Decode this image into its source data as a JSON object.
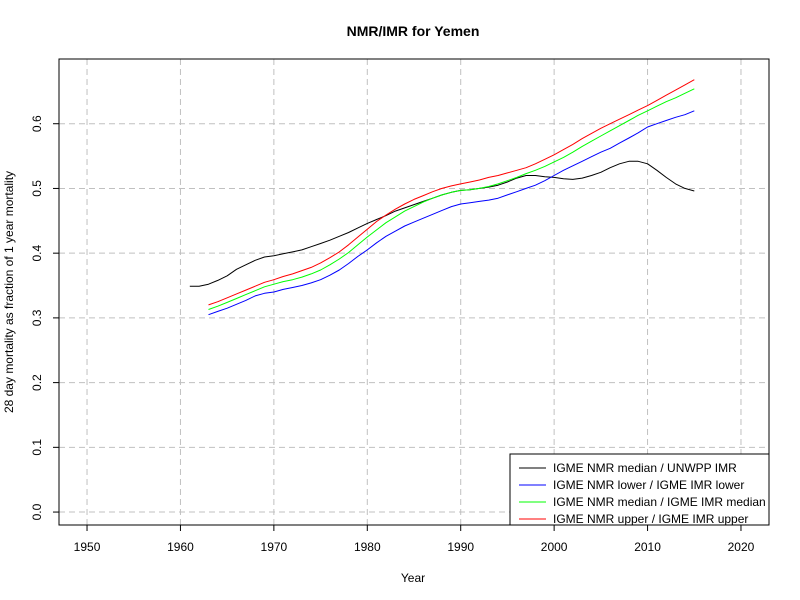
{
  "chart_data": {
    "type": "line",
    "title": "NMR/IMR for Yemen",
    "xlabel": "Year",
    "ylabel": "28 day mortality as fraction of 1 year mortality",
    "xlim": [
      1947,
      2023
    ],
    "ylim": [
      -0.02,
      0.7
    ],
    "x_ticks": [
      1950,
      1960,
      1970,
      1980,
      1990,
      2000,
      2010,
      2020
    ],
    "y_ticks": [
      0.0,
      0.1,
      0.2,
      0.3,
      0.4,
      0.5,
      0.6
    ],
    "grid": true,
    "legend_position": "bottom-right",
    "series": [
      {
        "name": "IGME NMR median / UNWPP IMR",
        "color": "#000000",
        "x": [
          1961,
          1962,
          1963,
          1964,
          1965,
          1966,
          1967,
          1968,
          1969,
          1970,
          1971,
          1972,
          1973,
          1974,
          1975,
          1976,
          1977,
          1978,
          1979,
          1980,
          1981,
          1982,
          1983,
          1984,
          1985,
          1986,
          1987,
          1988,
          1989,
          1990,
          1991,
          1992,
          1993,
          1994,
          1995,
          1996,
          1997,
          1998,
          1999,
          2000,
          2001,
          2002,
          2003,
          2004,
          2005,
          2006,
          2007,
          2008,
          2009,
          2010,
          2011,
          2012,
          2013,
          2014,
          2015
        ],
        "y": [
          0.349,
          0.349,
          0.352,
          0.358,
          0.365,
          0.375,
          0.382,
          0.389,
          0.394,
          0.396,
          0.399,
          0.402,
          0.405,
          0.41,
          0.415,
          0.42,
          0.426,
          0.432,
          0.439,
          0.446,
          0.452,
          0.458,
          0.465,
          0.47,
          0.475,
          0.48,
          0.485,
          0.49,
          0.494,
          0.497,
          0.498,
          0.5,
          0.502,
          0.505,
          0.51,
          0.516,
          0.52,
          0.52,
          0.518,
          0.517,
          0.515,
          0.514,
          0.516,
          0.52,
          0.525,
          0.532,
          0.538,
          0.542,
          0.542,
          0.538,
          0.528,
          0.517,
          0.507,
          0.5,
          0.496
        ]
      },
      {
        "name": "IGME NMR lower / IGME IMR lower",
        "color": "#0000ff",
        "x": [
          1963,
          1964,
          1965,
          1966,
          1967,
          1968,
          1969,
          1970,
          1971,
          1972,
          1973,
          1974,
          1975,
          1976,
          1977,
          1978,
          1979,
          1980,
          1981,
          1982,
          1983,
          1984,
          1985,
          1986,
          1987,
          1988,
          1989,
          1990,
          1991,
          1992,
          1993,
          1994,
          1995,
          1996,
          1997,
          1998,
          1999,
          2000,
          2001,
          2002,
          2003,
          2004,
          2005,
          2006,
          2007,
          2008,
          2009,
          2010,
          2011,
          2012,
          2013,
          2014,
          2015
        ],
        "y": [
          0.305,
          0.31,
          0.315,
          0.321,
          0.327,
          0.334,
          0.338,
          0.34,
          0.344,
          0.347,
          0.35,
          0.354,
          0.359,
          0.366,
          0.374,
          0.384,
          0.395,
          0.405,
          0.416,
          0.426,
          0.434,
          0.442,
          0.448,
          0.454,
          0.46,
          0.466,
          0.472,
          0.476,
          0.478,
          0.48,
          0.482,
          0.485,
          0.49,
          0.495,
          0.5,
          0.505,
          0.512,
          0.52,
          0.528,
          0.535,
          0.542,
          0.549,
          0.556,
          0.562,
          0.57,
          0.578,
          0.586,
          0.595,
          0.6,
          0.605,
          0.61,
          0.614,
          0.62
        ]
      },
      {
        "name": "IGME NMR median / IGME IMR median",
        "color": "#00ff00",
        "x": [
          1963,
          1964,
          1965,
          1966,
          1967,
          1968,
          1969,
          1970,
          1971,
          1972,
          1973,
          1974,
          1975,
          1976,
          1977,
          1978,
          1979,
          1980,
          1981,
          1982,
          1983,
          1984,
          1985,
          1986,
          1987,
          1988,
          1989,
          1990,
          1991,
          1992,
          1993,
          1994,
          1995,
          1996,
          1997,
          1998,
          1999,
          2000,
          2001,
          2002,
          2003,
          2004,
          2005,
          2006,
          2007,
          2008,
          2009,
          2010,
          2011,
          2012,
          2013,
          2014,
          2015
        ],
        "y": [
          0.313,
          0.318,
          0.324,
          0.33,
          0.336,
          0.342,
          0.348,
          0.352,
          0.356,
          0.359,
          0.363,
          0.368,
          0.374,
          0.382,
          0.391,
          0.401,
          0.413,
          0.425,
          0.436,
          0.447,
          0.456,
          0.465,
          0.472,
          0.479,
          0.485,
          0.49,
          0.494,
          0.497,
          0.498,
          0.5,
          0.503,
          0.507,
          0.512,
          0.517,
          0.523,
          0.528,
          0.534,
          0.541,
          0.548,
          0.556,
          0.565,
          0.573,
          0.581,
          0.589,
          0.597,
          0.605,
          0.613,
          0.62,
          0.627,
          0.634,
          0.64,
          0.647,
          0.654
        ]
      },
      {
        "name": "IGME NMR upper / IGME IMR upper",
        "color": "#ff0000",
        "x": [
          1963,
          1964,
          1965,
          1966,
          1967,
          1968,
          1969,
          1970,
          1971,
          1972,
          1973,
          1974,
          1975,
          1976,
          1977,
          1978,
          1979,
          1980,
          1981,
          1982,
          1983,
          1984,
          1985,
          1986,
          1987,
          1988,
          1989,
          1990,
          1991,
          1992,
          1993,
          1994,
          1995,
          1996,
          1997,
          1998,
          1999,
          2000,
          2001,
          2002,
          2003,
          2004,
          2005,
          2006,
          2007,
          2008,
          2009,
          2010,
          2011,
          2012,
          2013,
          2014,
          2015
        ],
        "y": [
          0.32,
          0.325,
          0.331,
          0.337,
          0.343,
          0.349,
          0.355,
          0.359,
          0.364,
          0.368,
          0.373,
          0.378,
          0.385,
          0.393,
          0.402,
          0.413,
          0.425,
          0.437,
          0.449,
          0.459,
          0.468,
          0.476,
          0.483,
          0.489,
          0.495,
          0.5,
          0.504,
          0.507,
          0.51,
          0.513,
          0.517,
          0.52,
          0.524,
          0.528,
          0.532,
          0.538,
          0.545,
          0.552,
          0.56,
          0.568,
          0.577,
          0.585,
          0.593,
          0.6,
          0.607,
          0.614,
          0.621,
          0.628,
          0.636,
          0.644,
          0.652,
          0.66,
          0.668
        ]
      }
    ]
  }
}
